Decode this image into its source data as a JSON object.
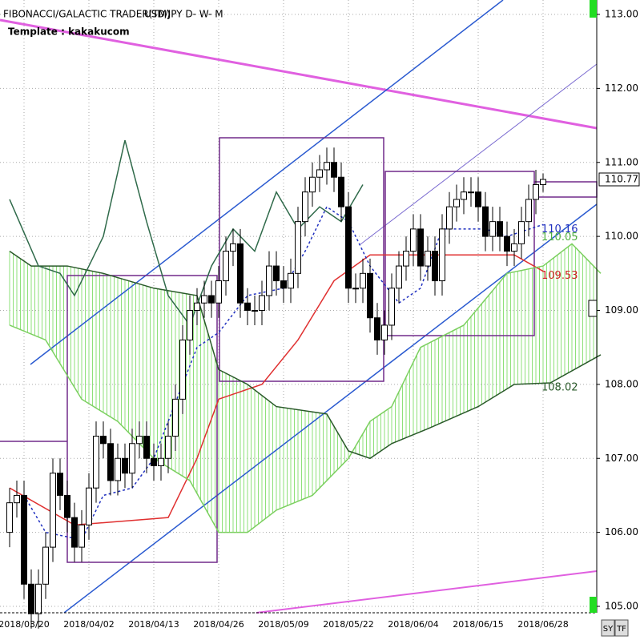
{
  "chart_data": {
    "type": "candlestick",
    "title": "FIBONACCI/GALACTIC TRADER(TM)",
    "symbol": "USD/JPY D- W- M",
    "subtitle": "Template : kakakucom",
    "buttons": [
      "SY",
      "TF"
    ],
    "categories": [
      null,
      null,
      "2018/03/20",
      null,
      null,
      null,
      null,
      null,
      null,
      null,
      null,
      "2018/04/02",
      null,
      null,
      null,
      null,
      null,
      null,
      null,
      null,
      "2018/04/13",
      null,
      null,
      null,
      null,
      null,
      null,
      null,
      null,
      "2018/04/26",
      null,
      null,
      null,
      null,
      null,
      null,
      null,
      null,
      "2018/05/09",
      null,
      null,
      null,
      null,
      null,
      null,
      null,
      null,
      "2018/05/22",
      null,
      null,
      null,
      null,
      null,
      null,
      null,
      null,
      "2018/06/04",
      null,
      null,
      null,
      null,
      null,
      null,
      null,
      null,
      "2018/06/15",
      null,
      null,
      null,
      null,
      null,
      null,
      null,
      null,
      "2018/06/28"
    ],
    "open": [
      106.0,
      106.4,
      106.5,
      105.3,
      104.9,
      105.3,
      105.8,
      106.8,
      106.5,
      106.2,
      105.8,
      106.1,
      106.6,
      107.3,
      107.2,
      106.7,
      107.0,
      106.8,
      107.2,
      107.3,
      107.0,
      106.9,
      107.0,
      107.3,
      107.8,
      108.6,
      109.0,
      109.1,
      109.2,
      109.1,
      109.4,
      109.8,
      109.9,
      109.1,
      109.0,
      109.0,
      109.2,
      109.6,
      109.4,
      109.3,
      109.5,
      110.2,
      110.6,
      110.8,
      110.9,
      111.0,
      110.8,
      110.4,
      109.3,
      109.3,
      109.5,
      108.9,
      108.6,
      108.8,
      109.3,
      109.6,
      109.8,
      110.1,
      109.6,
      109.8,
      109.4,
      110.1,
      110.4,
      110.5,
      110.6,
      110.6,
      110.4,
      110.0,
      110.2,
      110.0,
      109.8,
      109.9,
      110.2,
      110.5,
      110.7
    ],
    "high": [
      106.6,
      106.7,
      106.7,
      105.5,
      105.5,
      106.0,
      107.0,
      107.0,
      106.7,
      106.4,
      106.3,
      106.8,
      107.5,
      107.5,
      107.4,
      107.2,
      107.2,
      107.4,
      107.5,
      107.5,
      107.2,
      107.2,
      107.5,
      108.0,
      108.8,
      109.2,
      109.3,
      109.4,
      109.4,
      109.6,
      110.0,
      110.1,
      110.1,
      109.3,
      109.2,
      109.4,
      109.8,
      109.8,
      109.6,
      109.7,
      110.4,
      110.8,
      111.0,
      111.1,
      111.2,
      111.2,
      111.0,
      110.6,
      109.5,
      109.7,
      109.7,
      109.1,
      109.0,
      109.5,
      109.8,
      110.0,
      110.3,
      110.3,
      110.0,
      110.0,
      110.3,
      110.6,
      110.7,
      110.8,
      110.8,
      110.8,
      110.6,
      110.4,
      110.4,
      110.2,
      110.1,
      110.4,
      110.7,
      110.9,
      110.85
    ],
    "low": [
      105.8,
      106.2,
      105.1,
      104.7,
      104.7,
      105.1,
      105.6,
      106.3,
      106.0,
      105.6,
      105.6,
      105.9,
      106.4,
      107.0,
      106.5,
      106.5,
      106.6,
      106.6,
      107.0,
      106.8,
      106.7,
      106.7,
      106.8,
      107.1,
      107.6,
      108.4,
      108.8,
      108.9,
      108.9,
      108.9,
      109.2,
      109.6,
      108.9,
      108.8,
      108.8,
      108.8,
      109.0,
      109.2,
      109.1,
      109.1,
      109.3,
      110.0,
      110.4,
      110.6,
      110.7,
      110.6,
      110.2,
      109.1,
      109.1,
      109.1,
      108.7,
      108.4,
      108.4,
      108.6,
      109.1,
      109.4,
      109.6,
      109.4,
      109.4,
      109.2,
      109.2,
      109.9,
      110.2,
      110.3,
      110.4,
      110.2,
      109.8,
      109.8,
      109.8,
      109.6,
      109.6,
      109.7,
      110.0,
      110.3,
      110.6
    ],
    "close": [
      106.4,
      106.5,
      105.3,
      104.9,
      105.3,
      105.8,
      106.8,
      106.5,
      106.2,
      105.8,
      106.1,
      106.6,
      107.3,
      107.2,
      106.7,
      107.0,
      106.8,
      107.2,
      107.3,
      107.0,
      106.9,
      107.0,
      107.3,
      107.8,
      108.6,
      109.0,
      109.1,
      109.2,
      109.1,
      109.4,
      109.8,
      109.9,
      109.1,
      109.0,
      109.0,
      109.2,
      109.6,
      109.4,
      109.3,
      109.5,
      110.2,
      110.6,
      110.8,
      110.9,
      111.0,
      110.8,
      110.4,
      109.3,
      109.3,
      109.5,
      108.9,
      108.6,
      108.8,
      109.3,
      109.6,
      109.8,
      110.1,
      109.6,
      109.8,
      109.4,
      110.1,
      110.4,
      110.5,
      110.6,
      110.6,
      110.4,
      110.0,
      110.2,
      110.0,
      109.8,
      109.9,
      110.2,
      110.5,
      110.7,
      110.77
    ],
    "lines": [
      {
        "color": "#e03030",
        "x": [
          0,
          9,
          22,
          26,
          29,
          35,
          40,
          45,
          50,
          70,
          74
        ],
        "values": [
          106.6,
          106.1,
          106.2,
          107.0,
          107.8,
          108.0,
          108.6,
          109.4,
          109.75,
          109.75,
          109.53
        ]
      },
      {
        "color": "#2030c0",
        "dash": true,
        "x": [
          2,
          5,
          10,
          13,
          17,
          20,
          24,
          26,
          29,
          33,
          38,
          41,
          44,
          47,
          50,
          54,
          57,
          60,
          66,
          69,
          74
        ],
        "values": [
          106.5,
          106.0,
          105.9,
          106.5,
          106.6,
          107.0,
          108.0,
          108.5,
          108.7,
          109.2,
          109.3,
          109.8,
          110.4,
          110.2,
          109.6,
          109.1,
          109.3,
          110.1,
          110.1,
          110.0,
          110.16
        ]
      },
      {
        "color": "#7cd060",
        "x": [
          0,
          5,
          10,
          15,
          20,
          25,
          29,
          33,
          37,
          42,
          47,
          50,
          53,
          57,
          63,
          69,
          74,
          78,
          82
        ],
        "values": [
          108.8,
          108.6,
          107.8,
          107.5,
          107.0,
          106.7,
          106.0,
          106.0,
          106.3,
          106.5,
          107.0,
          107.5,
          107.7,
          108.5,
          108.8,
          109.5,
          109.6,
          109.9,
          109.5
        ]
      },
      {
        "color": "#2a5a2a",
        "x": [
          0,
          3,
          8,
          13,
          20,
          26,
          29,
          33,
          37,
          44,
          47,
          50,
          53,
          58,
          65,
          70,
          75,
          82
        ],
        "values": [
          109.8,
          109.6,
          109.6,
          109.5,
          109.3,
          109.2,
          108.2,
          108.0,
          107.7,
          107.6,
          107.1,
          107.0,
          107.2,
          107.4,
          107.7,
          108.0,
          108.02,
          108.4
        ]
      },
      {
        "color": "#2f6a4a",
        "x": [
          0,
          4,
          7,
          9,
          13,
          16,
          19,
          22,
          25,
          28,
          31,
          34,
          37,
          40,
          43,
          46,
          49
        ],
        "values": [
          110.5,
          109.6,
          109.5,
          109.2,
          110.0,
          111.3,
          110.2,
          109.2,
          108.8,
          109.6,
          110.1,
          109.8,
          110.6,
          110.1,
          110.4,
          110.2,
          110.7
        ]
      }
    ],
    "annotations": [
      {
        "value": 110.16,
        "color": "#2030c0"
      },
      {
        "value": 110.05,
        "color": "#50b040"
      },
      {
        "value": 109.53,
        "color": "#d02020"
      },
      {
        "value": 108.02,
        "color": "#2a5a2a"
      }
    ],
    "last_price": 110.77,
    "ylim": [
      105,
      113
    ],
    "yticks": [
      {
        "value": 105,
        "label": "105.00"
      },
      {
        "value": 106,
        "label": "106.00"
      },
      {
        "value": 107,
        "label": "107.00"
      },
      {
        "value": 108,
        "label": "108.00"
      },
      {
        "value": 109,
        "label": "109.00"
      },
      {
        "value": 110,
        "label": "110.00"
      },
      {
        "value": 111,
        "label": "111.00"
      },
      {
        "value": 112,
        "label": "112.00"
      },
      {
        "value": 113,
        "label": "113.00"
      }
    ],
    "grid": true
  }
}
